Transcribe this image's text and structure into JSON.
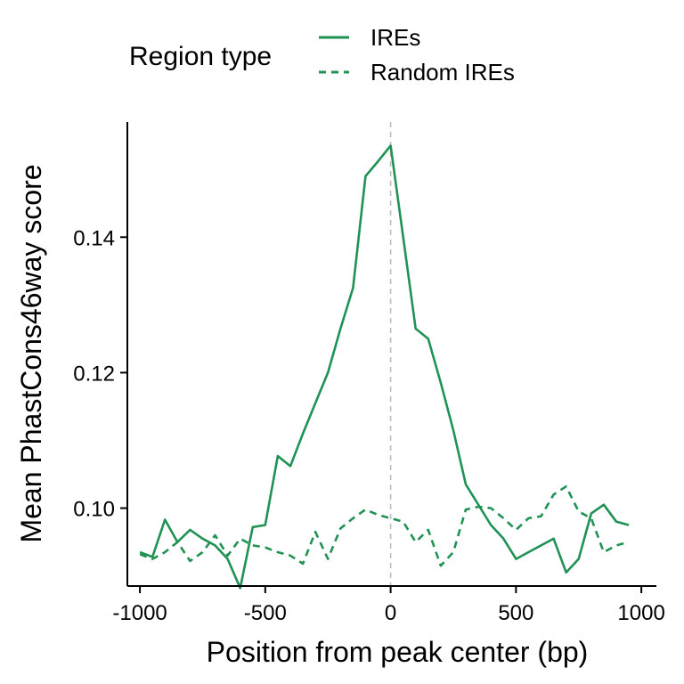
{
  "chart_data": {
    "type": "line",
    "xlabel": "Position from peak center (bp)",
    "ylabel": "Mean PhastCons46way score",
    "xlim": [
      -1050,
      1060
    ],
    "ylim": [
      0.0885,
      0.157
    ],
    "x_ticks": [
      -1000,
      -500,
      0,
      500,
      1000
    ],
    "x_tick_labels": [
      "-1000",
      "-500",
      "0",
      "500",
      "1000"
    ],
    "y_ticks": [
      0.1,
      0.12,
      0.14
    ],
    "y_tick_labels": [
      "0.10",
      "0.12",
      "0.14"
    ],
    "reference_line": {
      "x": 0,
      "style": "dashed",
      "color": "#bdbdbd"
    },
    "grid": false,
    "legend": {
      "title": "Region type",
      "position": "top",
      "entries": [
        {
          "label": "IREs",
          "linestyle": "solid"
        },
        {
          "label": "Random IREs",
          "linestyle": "dashed"
        }
      ]
    },
    "color": "#1f9254",
    "series": [
      {
        "name": "IREs",
        "linestyle": "solid",
        "x": [
          -1000,
          -950,
          -900,
          -850,
          -800,
          -750,
          -700,
          -650,
          -600,
          -550,
          -500,
          -450,
          -400,
          -350,
          -300,
          -250,
          -200,
          -150,
          -100,
          -50,
          0,
          50,
          100,
          150,
          200,
          250,
          300,
          350,
          400,
          450,
          500,
          550,
          600,
          650,
          700,
          750,
          800,
          850,
          900,
          950
        ],
        "values": [
          0.0935,
          0.0928,
          0.0983,
          0.095,
          0.0968,
          0.0955,
          0.0945,
          0.0925,
          0.0882,
          0.0972,
          0.0975,
          0.1077,
          0.1062,
          0.111,
          0.1155,
          0.12,
          0.1265,
          0.1325,
          0.149,
          0.1512,
          0.1535,
          0.14,
          0.1265,
          0.125,
          0.1185,
          0.1115,
          0.1035,
          0.1005,
          0.0975,
          0.0955,
          0.0925,
          0.0935,
          0.0945,
          0.0955,
          0.0905,
          0.0925,
          0.0992,
          0.1005,
          0.098,
          0.0975
        ]
      },
      {
        "name": "Random IREs",
        "linestyle": "dashed",
        "x": [
          -1000,
          -950,
          -900,
          -850,
          -800,
          -750,
          -700,
          -650,
          -600,
          -550,
          -500,
          -450,
          -400,
          -350,
          -300,
          -250,
          -200,
          -150,
          -100,
          -50,
          0,
          50,
          100,
          150,
          200,
          250,
          300,
          350,
          400,
          450,
          500,
          550,
          600,
          650,
          700,
          750,
          800,
          850,
          900,
          950
        ],
        "values": [
          0.0932,
          0.0925,
          0.0935,
          0.095,
          0.0922,
          0.0935,
          0.096,
          0.093,
          0.0955,
          0.0945,
          0.0942,
          0.0935,
          0.093,
          0.0918,
          0.0965,
          0.0925,
          0.097,
          0.0985,
          0.0998,
          0.099,
          0.0985,
          0.098,
          0.095,
          0.0968,
          0.0915,
          0.0935,
          0.0998,
          0.1002,
          0.1,
          0.0985,
          0.0968,
          0.0985,
          0.0988,
          0.102,
          0.1032,
          0.0995,
          0.0985,
          0.0935,
          0.0945,
          0.095
        ]
      }
    ]
  }
}
